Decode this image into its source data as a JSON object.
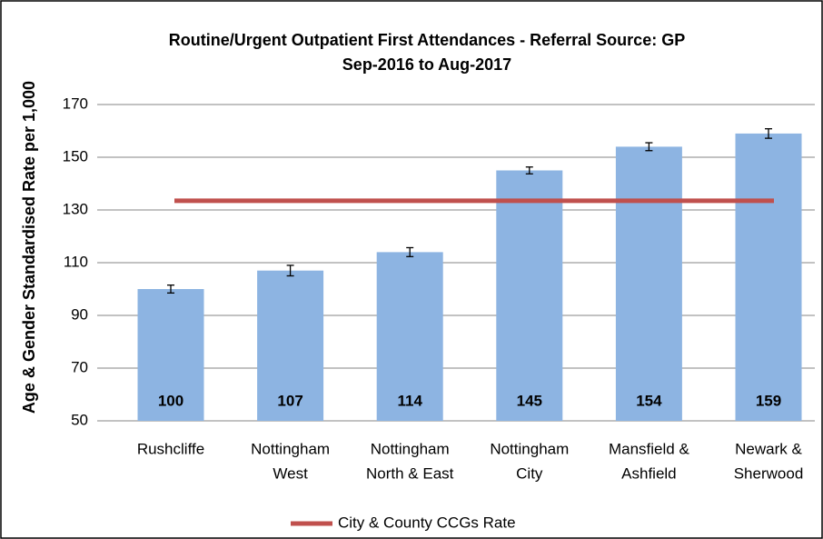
{
  "chart_data": {
    "type": "bar",
    "title": "Routine/Urgent Outpatient First Attendances - Referral Source: GP",
    "subtitle": "Sep-2016 to Aug-2017",
    "y_label": "Age & Gender Standardised Rate per 1,000",
    "categories": [
      [
        "Rushcliffe"
      ],
      [
        "Nottingham",
        "West"
      ],
      [
        "Nottingham",
        "North & East"
      ],
      [
        "Nottingham",
        "City"
      ],
      [
        "Mansfield &",
        "Ashfield"
      ],
      [
        "Newark &",
        "Sherwood"
      ]
    ],
    "values": [
      100,
      107,
      114,
      145,
      154,
      159
    ],
    "errors": [
      1.5,
      2,
      1.7,
      1.3,
      1.5,
      1.8
    ],
    "color": "#8db4e2",
    "reference": {
      "name": "City & County CCGs Rate",
      "value": 133.5,
      "color": "#c0504d"
    },
    "ylim": [
      50,
      170
    ],
    "yticks": [
      50,
      70,
      90,
      110,
      130,
      150,
      170
    ],
    "grid": true
  }
}
